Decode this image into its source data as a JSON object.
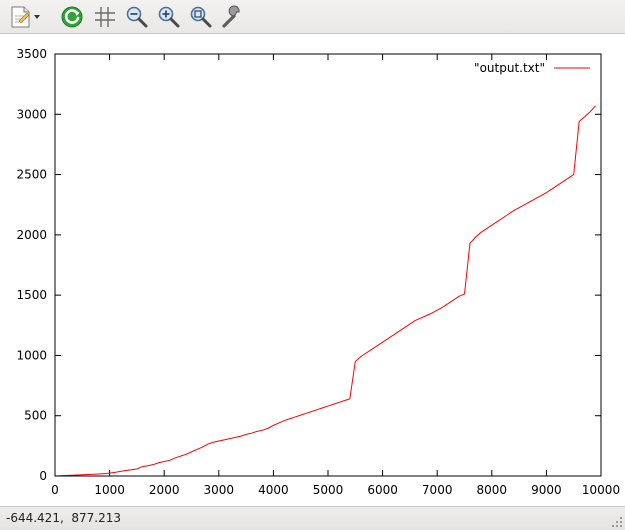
{
  "toolbar": {
    "buttons": [
      {
        "name": "export-button",
        "icon": "export-document-icon"
      },
      {
        "name": "replot-button",
        "icon": "replot-icon"
      },
      {
        "name": "grid-button",
        "icon": "grid-icon"
      },
      {
        "name": "zoom-previous-button",
        "icon": "zoom-out-icon"
      },
      {
        "name": "zoom-next-button",
        "icon": "zoom-in-icon"
      },
      {
        "name": "autoscale-button",
        "icon": "zoom-fit-icon"
      },
      {
        "name": "settings-button",
        "icon": "wrench-icon"
      }
    ]
  },
  "colors": {
    "series_line": "#ff0000",
    "accent_green": "#1a9a2a"
  },
  "status": {
    "coordinates": "-644.421,  877.213"
  },
  "chart_data": {
    "type": "line",
    "title": "",
    "xlabel": "",
    "ylabel": "",
    "xlim": [
      0,
      10000
    ],
    "ylim": [
      0,
      3500
    ],
    "xticks": [
      "0",
      "1000",
      "2000",
      "3000",
      "4000",
      "5000",
      "6000",
      "7000",
      "8000",
      "9000",
      "10000"
    ],
    "yticks": [
      "0",
      "500",
      "1000",
      "1500",
      "2000",
      "2500",
      "3000",
      "3500"
    ],
    "grid": false,
    "legend_position": "top-right",
    "series": [
      {
        "name": "\"output.txt\"",
        "color": "#ff0000",
        "x": [
          0,
          100,
          200,
          300,
          400,
          500,
          600,
          700,
          800,
          900,
          1000,
          1100,
          1200,
          1300,
          1400,
          1500,
          1600,
          1700,
          1800,
          1900,
          2000,
          2100,
          2200,
          2300,
          2400,
          2500,
          2600,
          2700,
          2800,
          2900,
          3000,
          3100,
          3200,
          3300,
          3400,
          3500,
          3600,
          3700,
          3800,
          3900,
          4000,
          4100,
          4200,
          4300,
          4400,
          4500,
          4600,
          4700,
          4800,
          4900,
          5000,
          5100,
          5200,
          5300,
          5400,
          5500,
          5600,
          5700,
          5800,
          5900,
          6000,
          6100,
          6200,
          6300,
          6400,
          6500,
          6600,
          6700,
          6800,
          6900,
          7000,
          7100,
          7200,
          7300,
          7400,
          7500,
          7600,
          7700,
          7800,
          7900,
          8000,
          8100,
          8200,
          8300,
          8400,
          8500,
          8600,
          8700,
          8800,
          8900,
          9000,
          9100,
          9200,
          9300,
          9400,
          9500,
          9600,
          9700,
          9800,
          9900
        ],
        "y": [
          0,
          2,
          4,
          6,
          8,
          10,
          12,
          14,
          17,
          20,
          24,
          30,
          38,
          46,
          52,
          58,
          78,
          85,
          95,
          110,
          120,
          130,
          150,
          165,
          180,
          200,
          220,
          240,
          265,
          280,
          290,
          300,
          310,
          320,
          330,
          345,
          355,
          370,
          380,
          395,
          420,
          440,
          460,
          475,
          490,
          505,
          520,
          535,
          550,
          565,
          580,
          595,
          610,
          625,
          640,
          950,
          990,
          1020,
          1050,
          1080,
          1110,
          1140,
          1170,
          1200,
          1230,
          1260,
          1290,
          1310,
          1330,
          1350,
          1375,
          1400,
          1430,
          1460,
          1490,
          1510,
          1930,
          1980,
          2020,
          2050,
          2080,
          2110,
          2140,
          2170,
          2200,
          2225,
          2250,
          2275,
          2300,
          2325,
          2350,
          2380,
          2410,
          2440,
          2470,
          2500,
          2940,
          2980,
          3020,
          3070
        ]
      }
    ]
  }
}
